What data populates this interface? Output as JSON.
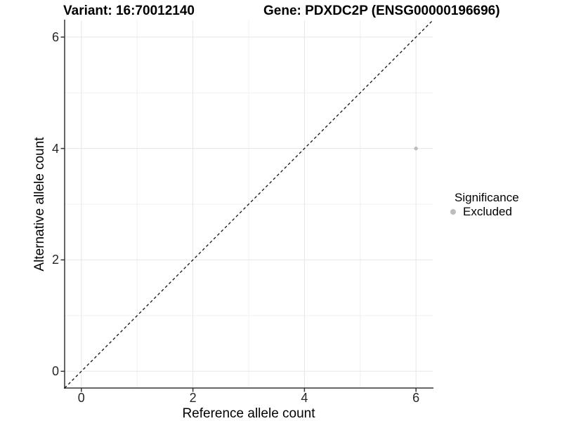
{
  "header": {
    "variant_title": "Variant: 16:70012140",
    "gene_title": "Gene: PDXDC2P (ENSG00000196696)"
  },
  "chart_data": {
    "type": "scatter",
    "title_left": "Variant: 16:70012140",
    "title_right": "Gene: PDXDC2P (ENSG00000196696)",
    "xlabel": "Reference allele count",
    "ylabel": "Alternative allele count",
    "xlim": [
      -0.3,
      6.3
    ],
    "ylim": [
      -0.3,
      6.3
    ],
    "x_ticks": [
      0,
      2,
      4,
      6
    ],
    "y_ticks": [
      0,
      2,
      4,
      6
    ],
    "x_minor_ticks": [
      1,
      3,
      5
    ],
    "y_minor_ticks": [
      1,
      3,
      5
    ],
    "grid": "major and minor gridlines, light gray on white panel",
    "identity_line": {
      "style": "dashed",
      "color": "#111111",
      "from": [
        -0.3,
        -0.3
      ],
      "to": [
        6.3,
        6.3
      ]
    },
    "series": [
      {
        "name": "Excluded",
        "color": "#bdbdbd",
        "points": [
          [
            6,
            4
          ]
        ],
        "point_radius": 2.7
      }
    ],
    "legend": {
      "title": "Significance",
      "position": "right",
      "items": [
        {
          "label": "Excluded",
          "color": "#bdbdbd"
        }
      ]
    },
    "colors": {
      "major_grid": "#e6e6e6",
      "minor_grid": "#f0f0f0",
      "axis_line": "#333333",
      "tick_mark": "#333333",
      "tick_text": "#262626"
    }
  }
}
